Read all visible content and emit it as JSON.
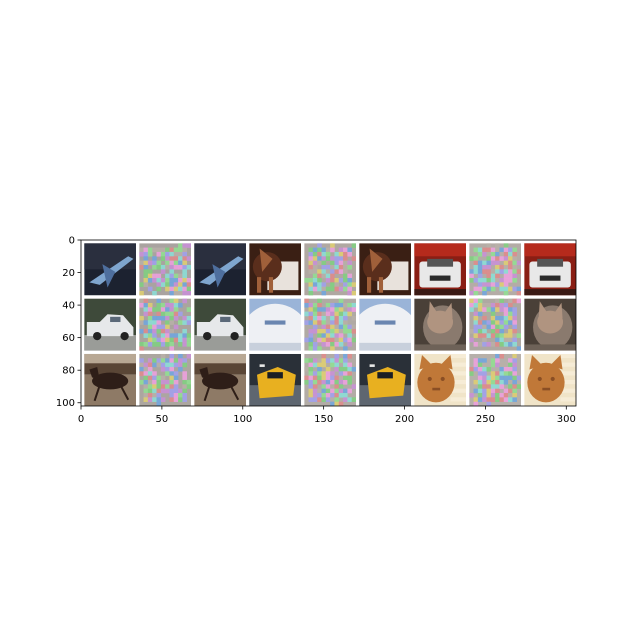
{
  "chart_data": {
    "type": "image",
    "xlim": [
      0,
      306
    ],
    "ylim": [
      102,
      0
    ],
    "yaxis_inverted": true,
    "grid": false,
    "xticks": [
      0,
      50,
      100,
      150,
      200,
      250,
      300
    ],
    "yticks": [
      0,
      20,
      40,
      60,
      80,
      100
    ],
    "tile_grid": {
      "rows": 3,
      "cols": 9,
      "tile_size": 32,
      "padding": 2,
      "background": "#ffffff"
    },
    "tiles": [
      {
        "row": 0,
        "col": 0,
        "kind": "airplane",
        "colors": [
          "#2a2f3e",
          "#4e6f9e",
          "#7fa6cf",
          "#1c2230"
        ]
      },
      {
        "row": 0,
        "col": 1,
        "kind": "noise",
        "colors": [
          "#a9a3a0",
          "#7fd17f",
          "#c98fd8",
          "#6fa6e0"
        ]
      },
      {
        "row": 0,
        "col": 2,
        "kind": "airplane",
        "colors": [
          "#2a2f3e",
          "#4e6f9e",
          "#7fa6cf",
          "#1c2230"
        ]
      },
      {
        "row": 0,
        "col": 3,
        "kind": "horse",
        "colors": [
          "#5a2e1c",
          "#a0603a",
          "#e8e2dc",
          "#3a1f14"
        ]
      },
      {
        "row": 0,
        "col": 4,
        "kind": "noise",
        "colors": [
          "#b0a8a2",
          "#7fd17f",
          "#d6a0c8",
          "#6f9ee0"
        ]
      },
      {
        "row": 0,
        "col": 5,
        "kind": "horse",
        "colors": [
          "#5a2e1c",
          "#a0603a",
          "#e8e2dc",
          "#3a1f14"
        ]
      },
      {
        "row": 0,
        "col": 6,
        "kind": "car-front",
        "colors": [
          "#8a1e14",
          "#e8e8e8",
          "#b52a1c",
          "#2a2a2a"
        ]
      },
      {
        "row": 0,
        "col": 7,
        "kind": "noise",
        "colors": [
          "#b4aca6",
          "#8ad48a",
          "#d0a0d0",
          "#7aa6e0"
        ]
      },
      {
        "row": 0,
        "col": 8,
        "kind": "car-front",
        "colors": [
          "#8a1e14",
          "#e8e8e8",
          "#b52a1c",
          "#2a2a2a"
        ]
      },
      {
        "row": 1,
        "col": 0,
        "kind": "car-side",
        "colors": [
          "#6a6a66",
          "#e6e8ea",
          "#3e4a3a",
          "#9a9c98"
        ]
      },
      {
        "row": 1,
        "col": 1,
        "kind": "noise",
        "colors": [
          "#aaa49e",
          "#86cf86",
          "#cf9ad2",
          "#74a2de"
        ]
      },
      {
        "row": 1,
        "col": 2,
        "kind": "car-side",
        "colors": [
          "#6a6a66",
          "#e6e8ea",
          "#3e4a3a",
          "#9a9c98"
        ]
      },
      {
        "row": 1,
        "col": 3,
        "kind": "plane-nose",
        "colors": [
          "#9ab4d8",
          "#eef0f4",
          "#c8d0dc",
          "#6a86b0"
        ]
      },
      {
        "row": 1,
        "col": 4,
        "kind": "noise",
        "colors": [
          "#b0aaa4",
          "#84d084",
          "#d2a4cc",
          "#78a4de"
        ]
      },
      {
        "row": 1,
        "col": 5,
        "kind": "plane-nose",
        "colors": [
          "#9ab4d8",
          "#eef0f4",
          "#c8d0dc",
          "#6a86b0"
        ]
      },
      {
        "row": 1,
        "col": 6,
        "kind": "cat",
        "colors": [
          "#6e6258",
          "#b09480",
          "#8a7a6e",
          "#4a4038"
        ]
      },
      {
        "row": 1,
        "col": 7,
        "kind": "noise",
        "colors": [
          "#aea8a2",
          "#80cc80",
          "#cf9ecf",
          "#76a0dc"
        ]
      },
      {
        "row": 1,
        "col": 8,
        "kind": "cat",
        "colors": [
          "#6e6258",
          "#b09480",
          "#8a7a6e",
          "#4a4038"
        ]
      },
      {
        "row": 2,
        "col": 0,
        "kind": "horse-dark",
        "colors": [
          "#8e7a66",
          "#2e1e18",
          "#5a4636",
          "#b8a894"
        ]
      },
      {
        "row": 2,
        "col": 1,
        "kind": "noise",
        "colors": [
          "#aca6a0",
          "#88d088",
          "#d0a0d4",
          "#72a0dc"
        ]
      },
      {
        "row": 2,
        "col": 2,
        "kind": "horse-dark",
        "colors": [
          "#8e7a66",
          "#2e1e18",
          "#5a4636",
          "#b8a894"
        ]
      },
      {
        "row": 2,
        "col": 3,
        "kind": "taxi",
        "colors": [
          "#2a3038",
          "#e8b020",
          "#5e6670",
          "#1a1e24"
        ]
      },
      {
        "row": 2,
        "col": 4,
        "kind": "noise",
        "colors": [
          "#b2aca6",
          "#82ce82",
          "#d4a2ce",
          "#7aa6e0"
        ]
      },
      {
        "row": 2,
        "col": 5,
        "kind": "taxi",
        "colors": [
          "#2a3038",
          "#e8b020",
          "#5e6670",
          "#1a1e24"
        ]
      },
      {
        "row": 2,
        "col": 6,
        "kind": "cat-orange",
        "colors": [
          "#f0e4c8",
          "#c07838",
          "#8a4e24",
          "#f6ecd6"
        ]
      },
      {
        "row": 2,
        "col": 7,
        "kind": "noise",
        "colors": [
          "#b6b0aa",
          "#86d286",
          "#d2a6d2",
          "#7aa8e2"
        ]
      },
      {
        "row": 2,
        "col": 8,
        "kind": "cat-orange",
        "colors": [
          "#f0e4c8",
          "#c07838",
          "#8a4e24",
          "#f6ecd6"
        ]
      }
    ]
  }
}
